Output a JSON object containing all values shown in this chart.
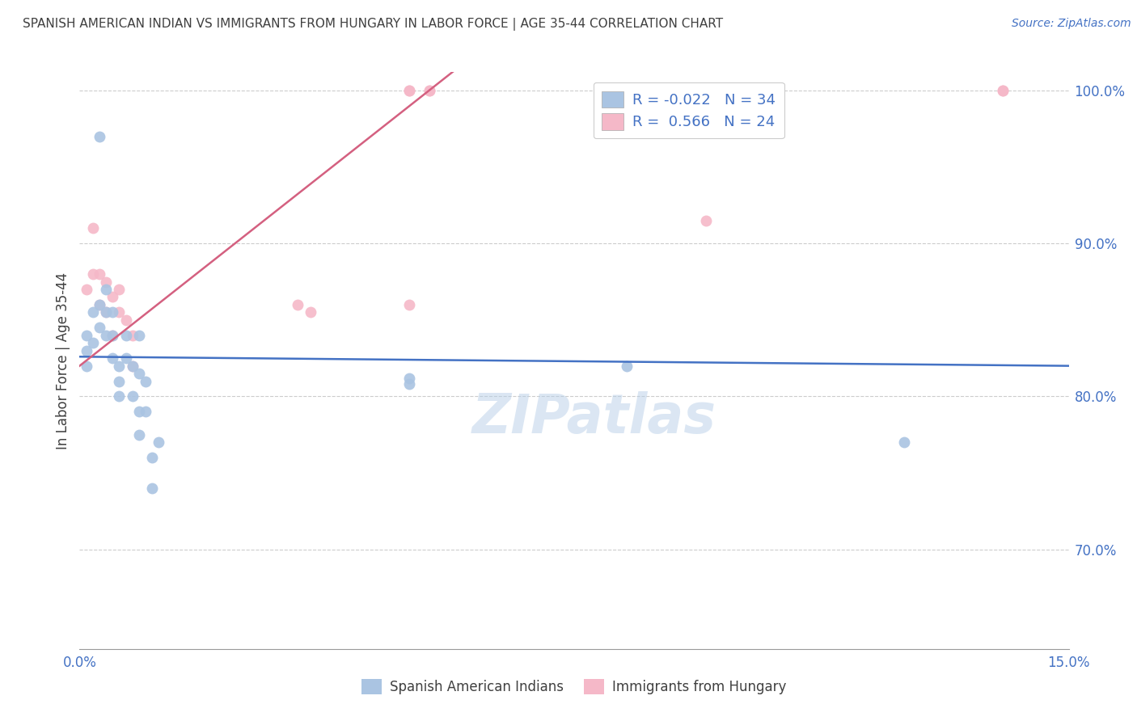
{
  "title": "SPANISH AMERICAN INDIAN VS IMMIGRANTS FROM HUNGARY IN LABOR FORCE | AGE 35-44 CORRELATION CHART",
  "source": "Source: ZipAtlas.com",
  "ylabel": "In Labor Force | Age 35-44",
  "x_min": 0.0,
  "x_max": 0.15,
  "y_min": 0.635,
  "y_max": 1.012,
  "x_ticks": [
    0.0,
    0.03,
    0.06,
    0.09,
    0.12,
    0.15
  ],
  "x_tick_labels": [
    "0.0%",
    "",
    "",
    "",
    "",
    "15.0%"
  ],
  "y_ticks_right": [
    0.7,
    0.8,
    0.9,
    1.0
  ],
  "y_tick_labels_right": [
    "70.0%",
    "80.0%",
    "90.0%",
    "100.0%"
  ],
  "watermark": "ZIPatlas",
  "legend_r1": "R = -0.022",
  "legend_n1": "N = 34",
  "legend_r2": "R =  0.566",
  "legend_n2": "N = 24",
  "blue_color": "#aac4e2",
  "blue_line_color": "#4472c4",
  "pink_color": "#f5b8c8",
  "pink_line_color": "#d46080",
  "legend_label1": "Spanish American Indians",
  "legend_label2": "Immigrants from Hungary",
  "blue_scatter_x": [
    0.001,
    0.001,
    0.001,
    0.002,
    0.002,
    0.003,
    0.003,
    0.003,
    0.004,
    0.004,
    0.004,
    0.005,
    0.005,
    0.005,
    0.006,
    0.006,
    0.006,
    0.007,
    0.007,
    0.008,
    0.008,
    0.009,
    0.009,
    0.009,
    0.009,
    0.01,
    0.01,
    0.011,
    0.011,
    0.012,
    0.05,
    0.05,
    0.083,
    0.125
  ],
  "blue_scatter_y": [
    0.84,
    0.83,
    0.82,
    0.855,
    0.835,
    0.97,
    0.86,
    0.845,
    0.87,
    0.855,
    0.84,
    0.855,
    0.84,
    0.825,
    0.82,
    0.81,
    0.8,
    0.84,
    0.825,
    0.82,
    0.8,
    0.84,
    0.815,
    0.79,
    0.775,
    0.81,
    0.79,
    0.76,
    0.74,
    0.77,
    0.812,
    0.808,
    0.82,
    0.77
  ],
  "pink_scatter_x": [
    0.001,
    0.002,
    0.002,
    0.003,
    0.003,
    0.004,
    0.004,
    0.005,
    0.005,
    0.006,
    0.006,
    0.007,
    0.008,
    0.008,
    0.033,
    0.035,
    0.05,
    0.05,
    0.05,
    0.053,
    0.053,
    0.095,
    0.14,
    0.14
  ],
  "pink_scatter_y": [
    0.87,
    0.91,
    0.88,
    0.88,
    0.86,
    0.875,
    0.855,
    0.865,
    0.84,
    0.87,
    0.855,
    0.85,
    0.84,
    0.82,
    0.86,
    0.855,
    1.0,
    1.0,
    0.86,
    1.0,
    1.0,
    0.915,
    1.0,
    1.0
  ],
  "blue_line_x0": 0.0,
  "blue_line_y0": 0.826,
  "blue_line_x1": 0.15,
  "blue_line_y1": 0.82,
  "pink_line_x0": 0.0,
  "pink_line_y0": 0.82,
  "pink_line_x1": 0.053,
  "pink_line_y1": 1.0,
  "grid_color": "#cccccc",
  "bg_color": "#ffffff",
  "title_color": "#404040",
  "axis_color": "#4472c4",
  "marker_size": 100
}
